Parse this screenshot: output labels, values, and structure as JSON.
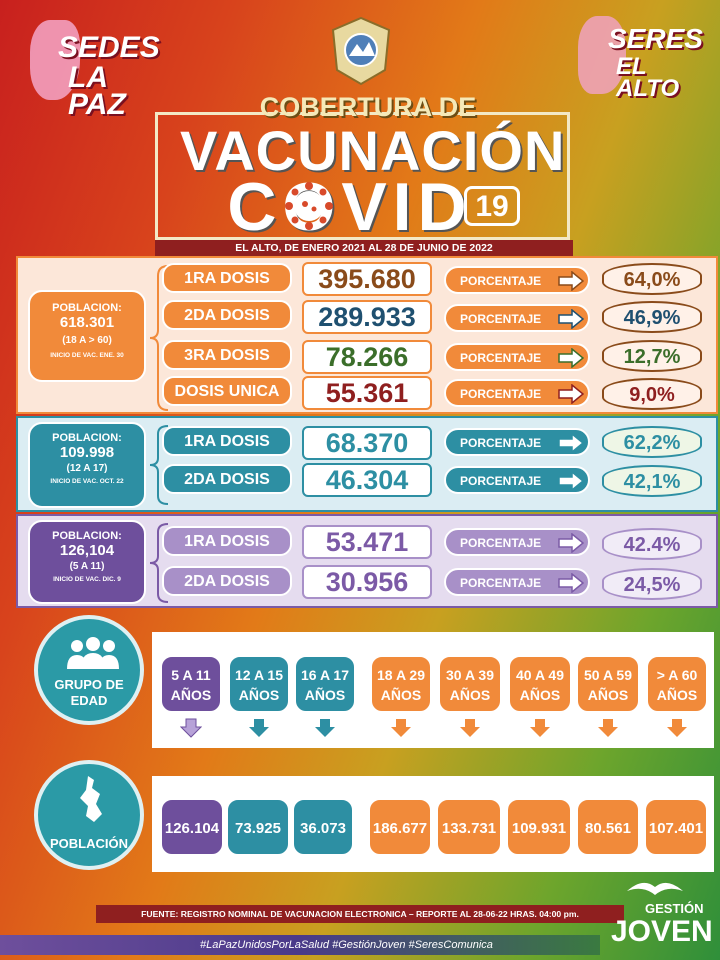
{
  "header": {
    "left_logo": {
      "line1": "SEDES",
      "line2": "LA PAZ"
    },
    "right_logo": {
      "line1": "SERES",
      "line2": "EL ALTO"
    },
    "title_line1": "COBERTURA DE",
    "title_line2": "VACUNACIÓN",
    "title_covid": "COVID",
    "title_19": "19",
    "subtitle": "EL ALTO, DE ENERO 2021 AL 28 DE JUNIO DE 2022"
  },
  "panel_adults": {
    "pop_label": "POBLACION:",
    "pop_value": "618.301",
    "pop_range": "(18 A > 60)",
    "pop_start": "INICIO DE VAC. ENE. 30",
    "rows": [
      {
        "dose": "1RA DOSIS",
        "value": "395.680",
        "pct_label": "PORCENTAJE",
        "pct": "64,0%"
      },
      {
        "dose": "2DA DOSIS",
        "value": "289.933",
        "pct_label": "PORCENTAJE",
        "pct": "46,9%"
      },
      {
        "dose": "3RA DOSIS",
        "value": "78.266",
        "pct_label": "PORCENTAJE",
        "pct": "12,7%"
      },
      {
        "dose": "DOSIS UNICA",
        "value": "55.361",
        "pct_label": "PORCENTAJE",
        "pct": "9,0%"
      }
    ]
  },
  "panel_teens": {
    "pop_label": "POBLACION:",
    "pop_value": "109.998",
    "pop_range": "(12 A 17)",
    "pop_start": "INICIO DE VAC. OCT. 22",
    "rows": [
      {
        "dose": "1RA DOSIS",
        "value": "68.370",
        "pct_label": "PORCENTAJE",
        "pct": "62,2%"
      },
      {
        "dose": "2DA DOSIS",
        "value": "46.304",
        "pct_label": "PORCENTAJE",
        "pct": "42,1%"
      }
    ]
  },
  "panel_kids": {
    "pop_label": "POBLACION:",
    "pop_value": "126,104",
    "pop_range": "(5 A 11)",
    "pop_start": "INICIO DE VAC. DIC. 9",
    "rows": [
      {
        "dose": "1RA DOSIS",
        "value": "53.471",
        "pct_label": "PORCENTAJE",
        "pct": "42.4%"
      },
      {
        "dose": "2DA DOSIS",
        "value": "30.956",
        "pct_label": "PORCENTAJE",
        "pct": "24,5%"
      }
    ]
  },
  "age_section": {
    "label_line1": "GRUPO DE",
    "label_line2": "EDAD",
    "groups": [
      {
        "line1": "5 A 11",
        "line2": "AÑOS"
      },
      {
        "line1": "12 A 15",
        "line2": "AÑOS"
      },
      {
        "line1": "16 A 17",
        "line2": "AÑOS"
      },
      {
        "line1": "18 A 29",
        "line2": "AÑOS"
      },
      {
        "line1": "30 A 39",
        "line2": "AÑOS"
      },
      {
        "line1": "40 A 49",
        "line2": "AÑOS"
      },
      {
        "line1": "50 A 59",
        "line2": "AÑOS"
      },
      {
        "line1": "> A 60",
        "line2": "AÑOS"
      }
    ]
  },
  "population_section": {
    "label": "POBLACIÓN",
    "values": [
      "126.104",
      "73.925",
      "36.073",
      "186.677",
      "133.731",
      "109.931",
      "80.561",
      "107.401"
    ]
  },
  "footer": {
    "source": "FUENTE: REGISTRO NOMINAL DE VACUNACION ELECTRONICA – REPORTE AL 28-06-22 HRAS. 04:00 pm.",
    "hashtags": "#LaPazUnidosPorLaSalud #GestiónJoven #SeresComunica",
    "brand_line1": "GESTIÓN",
    "brand_line2": "JOVEN"
  },
  "colors": {
    "adult_orange": "#f18a3a",
    "teen_teal": "#2d8fa3",
    "kid_purple": "#7b5aa6",
    "dark_red": "#8f1f1f"
  }
}
